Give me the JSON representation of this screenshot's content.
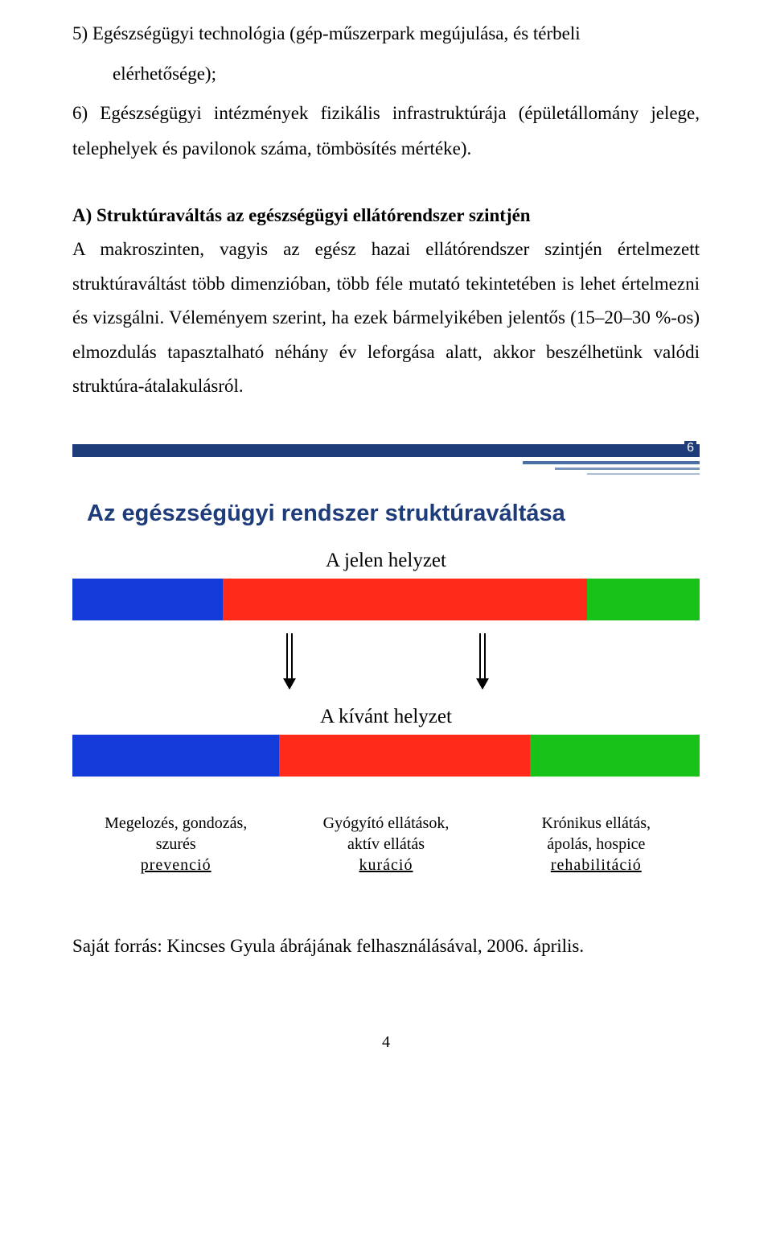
{
  "list": {
    "item5_lead": "5) Egészségügyi  technológia  (gép-műszerpark  megújulása,  és  térbeli",
    "item5_cont": "elérhetősége);",
    "item6": "6) Egészségügyi  intézmények  fizikális  infrastruktúrája  (épületállomány jelege,  telephelyek  és  pavilonok  száma,  tömbösítés mértéke)."
  },
  "section_A": {
    "heading": "A)    Struktúraváltás az egészségügyi ellátórendszer szintjén",
    "body": "A  makroszinten,  vagyis  az  egész  hazai  ellátórendszer  szintjén  értelmezett struktúraváltást  több  dimenzióban,  több  féle  mutató  tekintetében  is  lehet értelmezni és vizsgálni. Véleményem szerint, ha ezek bármelyikében jelentős (15–20–30  %-os)  elmozdulás  tapasztalható  néhány  év  leforgása  alatt,  akkor beszélhetünk valódi struktúra-átalakulásról."
  },
  "slide": {
    "page_number": "6",
    "title": "Az egészségügyi rendszer struktúraváltása",
    "caption_current": "A jelen helyzet",
    "caption_target": "A kívánt helyzet",
    "colors": {
      "blue": "#143bd9",
      "red": "#ff2a1a",
      "green": "#18c218",
      "header_bar": "#1f3c7a"
    },
    "bars": {
      "current": {
        "blue_pct": 24,
        "red_pct": 58,
        "green_pct": 18
      },
      "target": {
        "blue_pct": 33,
        "red_pct": 40,
        "green_pct": 27
      }
    },
    "columns": [
      {
        "line1": "Megelozés, gondozás,",
        "line2": "szurés",
        "under": "prevenció"
      },
      {
        "line1": "Gyógyító ellátások,",
        "line2": "aktív ellátás",
        "under": "kuráció"
      },
      {
        "line1": "Krónikus ellátás,",
        "line2": "ápolás, hospice",
        "under": "rehabilitáció"
      }
    ]
  },
  "source_line": "Saját forrás: Kincses Gyula ábrájának felhasználásával, 2006. április.",
  "page_number_bottom": "4"
}
